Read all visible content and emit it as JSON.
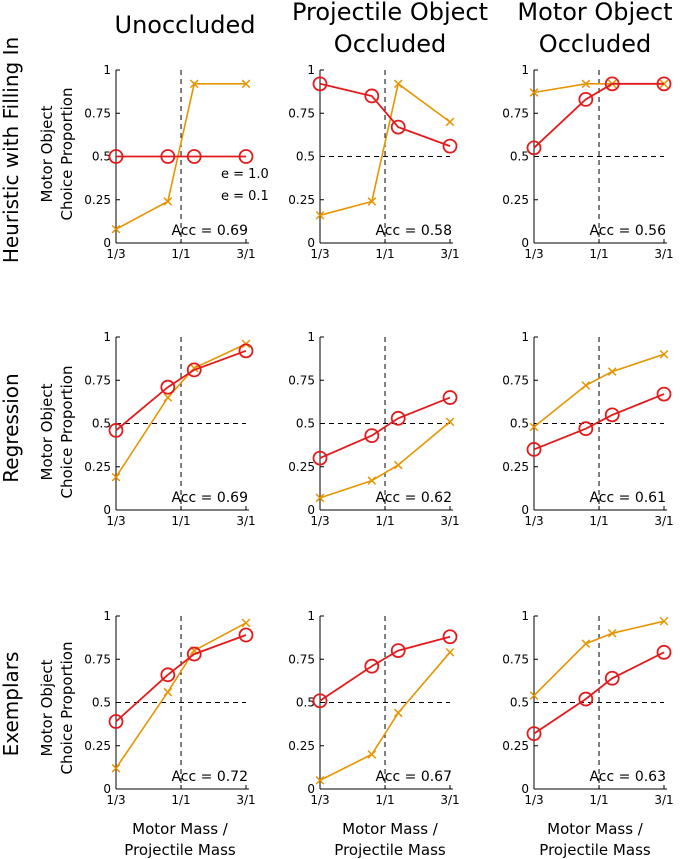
{
  "figure": {
    "column_titles": [
      [
        "Unoccluded"
      ],
      [
        "Projectile Object",
        "Occluded"
      ],
      [
        "Motor Object",
        "Occluded"
      ]
    ],
    "row_titles": [
      "Heuristic with Filling In",
      "Regression",
      "Exemplars"
    ],
    "y_axis_label": [
      "Motor Object",
      "Choice Proportion"
    ],
    "x_axis_label": [
      "Motor Mass /",
      "Projectile Mass"
    ],
    "colors": {
      "model": "#e31a1c",
      "human": "#e69500",
      "reference": "#000000"
    }
  },
  "legend": {
    "items": [
      "e = 1.0",
      "e = 0.1"
    ]
  },
  "chart_data": [
    {
      "type": "line",
      "row": 0,
      "col": 0,
      "xlim": [
        0.333,
        3.0
      ],
      "ylim": [
        0,
        1
      ],
      "x_scale": "log",
      "x_ticks": [
        {
          "v": 0.333,
          "label": "1/3"
        },
        {
          "v": 1,
          "label": "1/1"
        },
        {
          "v": 3,
          "label": "3/1"
        }
      ],
      "y_ticks": [
        {
          "v": 0,
          "label": "0"
        },
        {
          "v": 0.25,
          "label": "0.25"
        },
        {
          "v": 0.5,
          "label": "0.5"
        },
        {
          "v": 0.75,
          "label": "0.75"
        },
        {
          "v": 1,
          "label": "1"
        }
      ],
      "reference": {
        "vline": 1,
        "hline": 0.5
      },
      "series": [
        {
          "name": "model",
          "marker": "circle",
          "x": [
            0.333,
            0.8,
            1.25,
            3.0
          ],
          "y": [
            0.5,
            0.5,
            0.5,
            0.5
          ]
        },
        {
          "name": "human",
          "marker": "x",
          "x": [
            0.333,
            0.8,
            1.25,
            3.0
          ],
          "y": [
            0.08,
            0.24,
            0.92,
            0.92
          ]
        }
      ],
      "annotation": "Acc = 0.69"
    },
    {
      "type": "line",
      "row": 0,
      "col": 1,
      "xlim": [
        0.333,
        3.0
      ],
      "ylim": [
        0,
        1
      ],
      "x_scale": "log",
      "x_ticks": [
        {
          "v": 0.333,
          "label": "1/3"
        },
        {
          "v": 1,
          "label": "1/1"
        },
        {
          "v": 3,
          "label": "3/1"
        }
      ],
      "y_ticks": [
        {
          "v": 0,
          "label": "0"
        },
        {
          "v": 0.25,
          "label": "0.25"
        },
        {
          "v": 0.5,
          "label": "0.5"
        },
        {
          "v": 0.75,
          "label": "0.75"
        },
        {
          "v": 1,
          "label": "1"
        }
      ],
      "reference": {
        "vline": 1,
        "hline": 0.5
      },
      "series": [
        {
          "name": "model",
          "marker": "circle",
          "x": [
            0.333,
            0.8,
            1.25,
            3.0
          ],
          "y": [
            0.92,
            0.85,
            0.67,
            0.56
          ]
        },
        {
          "name": "human",
          "marker": "x",
          "x": [
            0.333,
            0.8,
            1.25,
            3.0
          ],
          "y": [
            0.16,
            0.24,
            0.92,
            0.7
          ]
        }
      ],
      "annotation": "Acc = 0.58"
    },
    {
      "type": "line",
      "row": 0,
      "col": 2,
      "xlim": [
        0.333,
        3.0
      ],
      "ylim": [
        0,
        1
      ],
      "x_scale": "log",
      "x_ticks": [
        {
          "v": 0.333,
          "label": "1/3"
        },
        {
          "v": 1,
          "label": "1/1"
        },
        {
          "v": 3,
          "label": "3/1"
        }
      ],
      "y_ticks": [
        {
          "v": 0,
          "label": "0"
        },
        {
          "v": 0.25,
          "label": "0.25"
        },
        {
          "v": 0.5,
          "label": "0.5"
        },
        {
          "v": 0.75,
          "label": "0.75"
        },
        {
          "v": 1,
          "label": "1"
        }
      ],
      "reference": {
        "vline": 1,
        "hline": 0.5
      },
      "series": [
        {
          "name": "model",
          "marker": "circle",
          "x": [
            0.333,
            0.8,
            1.25,
            3.0
          ],
          "y": [
            0.55,
            0.83,
            0.92,
            0.92
          ]
        },
        {
          "name": "human",
          "marker": "x",
          "x": [
            0.333,
            0.8,
            1.25,
            3.0
          ],
          "y": [
            0.87,
            0.92,
            0.92,
            0.92
          ]
        }
      ],
      "annotation": "Acc = 0.56"
    },
    {
      "type": "line",
      "row": 1,
      "col": 0,
      "xlim": [
        0.333,
        3.0
      ],
      "ylim": [
        0,
        1
      ],
      "x_scale": "log",
      "x_ticks": [
        {
          "v": 0.333,
          "label": "1/3"
        },
        {
          "v": 1,
          "label": "1/1"
        },
        {
          "v": 3,
          "label": "3/1"
        }
      ],
      "y_ticks": [
        {
          "v": 0,
          "label": "0"
        },
        {
          "v": 0.25,
          "label": "0.25"
        },
        {
          "v": 0.5,
          "label": "0.5"
        },
        {
          "v": 0.75,
          "label": "0.75"
        },
        {
          "v": 1,
          "label": "1"
        }
      ],
      "reference": {
        "vline": 1,
        "hline": 0.5
      },
      "series": [
        {
          "name": "model",
          "marker": "circle",
          "x": [
            0.333,
            0.8,
            1.25,
            3.0
          ],
          "y": [
            0.46,
            0.71,
            0.81,
            0.92
          ]
        },
        {
          "name": "human",
          "marker": "x",
          "x": [
            0.333,
            0.8,
            1.25,
            3.0
          ],
          "y": [
            0.19,
            0.65,
            0.82,
            0.96
          ]
        }
      ],
      "annotation": "Acc = 0.69"
    },
    {
      "type": "line",
      "row": 1,
      "col": 1,
      "xlim": [
        0.333,
        3.0
      ],
      "ylim": [
        0,
        1
      ],
      "x_scale": "log",
      "x_ticks": [
        {
          "v": 0.333,
          "label": "1/3"
        },
        {
          "v": 1,
          "label": "1/1"
        },
        {
          "v": 3,
          "label": "3/1"
        }
      ],
      "y_ticks": [
        {
          "v": 0,
          "label": "0"
        },
        {
          "v": 0.25,
          "label": "0.25"
        },
        {
          "v": 0.5,
          "label": "0.5"
        },
        {
          "v": 0.75,
          "label": "0.75"
        },
        {
          "v": 1,
          "label": "1"
        }
      ],
      "reference": {
        "vline": 1,
        "hline": 0.5
      },
      "series": [
        {
          "name": "model",
          "marker": "circle",
          "x": [
            0.333,
            0.8,
            1.25,
            3.0
          ],
          "y": [
            0.3,
            0.43,
            0.53,
            0.65
          ]
        },
        {
          "name": "human",
          "marker": "x",
          "x": [
            0.333,
            0.8,
            1.25,
            3.0
          ],
          "y": [
            0.07,
            0.17,
            0.26,
            0.51
          ]
        }
      ],
      "annotation": "Acc = 0.62"
    },
    {
      "type": "line",
      "row": 1,
      "col": 2,
      "xlim": [
        0.333,
        3.0
      ],
      "ylim": [
        0,
        1
      ],
      "x_scale": "log",
      "x_ticks": [
        {
          "v": 0.333,
          "label": "1/3"
        },
        {
          "v": 1,
          "label": "1/1"
        },
        {
          "v": 3,
          "label": "3/1"
        }
      ],
      "y_ticks": [
        {
          "v": 0,
          "label": "0"
        },
        {
          "v": 0.25,
          "label": "0.25"
        },
        {
          "v": 0.5,
          "label": "0.5"
        },
        {
          "v": 0.75,
          "label": "0.75"
        },
        {
          "v": 1,
          "label": "1"
        }
      ],
      "reference": {
        "vline": 1,
        "hline": 0.5
      },
      "series": [
        {
          "name": "model",
          "marker": "circle",
          "x": [
            0.333,
            0.8,
            1.25,
            3.0
          ],
          "y": [
            0.35,
            0.47,
            0.55,
            0.67
          ]
        },
        {
          "name": "human",
          "marker": "x",
          "x": [
            0.333,
            0.8,
            1.25,
            3.0
          ],
          "y": [
            0.48,
            0.72,
            0.8,
            0.9
          ]
        }
      ],
      "annotation": "Acc = 0.61"
    },
    {
      "type": "line",
      "row": 2,
      "col": 0,
      "xlim": [
        0.333,
        3.0
      ],
      "ylim": [
        0,
        1
      ],
      "x_scale": "log",
      "x_ticks": [
        {
          "v": 0.333,
          "label": "1/3"
        },
        {
          "v": 1,
          "label": "1/1"
        },
        {
          "v": 3,
          "label": "3/1"
        }
      ],
      "y_ticks": [
        {
          "v": 0,
          "label": "0"
        },
        {
          "v": 0.25,
          "label": "0.25"
        },
        {
          "v": 0.5,
          "label": "0.5"
        },
        {
          "v": 0.75,
          "label": "0.75"
        },
        {
          "v": 1,
          "label": "1"
        }
      ],
      "reference": {
        "vline": 1,
        "hline": 0.5
      },
      "series": [
        {
          "name": "model",
          "marker": "circle",
          "x": [
            0.333,
            0.8,
            1.25,
            3.0
          ],
          "y": [
            0.39,
            0.66,
            0.78,
            0.89
          ]
        },
        {
          "name": "human",
          "marker": "x",
          "x": [
            0.333,
            0.8,
            1.25,
            3.0
          ],
          "y": [
            0.12,
            0.56,
            0.8,
            0.96
          ]
        }
      ],
      "annotation": "Acc = 0.72"
    },
    {
      "type": "line",
      "row": 2,
      "col": 1,
      "xlim": [
        0.333,
        3.0
      ],
      "ylim": [
        0,
        1
      ],
      "x_scale": "log",
      "x_ticks": [
        {
          "v": 0.333,
          "label": "1/3"
        },
        {
          "v": 1,
          "label": "1/1"
        },
        {
          "v": 3,
          "label": "3/1"
        }
      ],
      "y_ticks": [
        {
          "v": 0,
          "label": "0"
        },
        {
          "v": 0.25,
          "label": "0.25"
        },
        {
          "v": 0.5,
          "label": "0.5"
        },
        {
          "v": 0.75,
          "label": "0.75"
        },
        {
          "v": 1,
          "label": "1"
        }
      ],
      "reference": {
        "vline": 1,
        "hline": 0.5
      },
      "series": [
        {
          "name": "model",
          "marker": "circle",
          "x": [
            0.333,
            0.8,
            1.25,
            3.0
          ],
          "y": [
            0.51,
            0.71,
            0.8,
            0.88
          ]
        },
        {
          "name": "human",
          "marker": "x",
          "x": [
            0.333,
            0.8,
            1.25,
            3.0
          ],
          "y": [
            0.05,
            0.2,
            0.44,
            0.79
          ]
        }
      ],
      "annotation": "Acc = 0.67"
    },
    {
      "type": "line",
      "row": 2,
      "col": 2,
      "xlim": [
        0.333,
        3.0
      ],
      "ylim": [
        0,
        1
      ],
      "x_scale": "log",
      "x_ticks": [
        {
          "v": 0.333,
          "label": "1/3"
        },
        {
          "v": 1,
          "label": "1/1"
        },
        {
          "v": 3,
          "label": "3/1"
        }
      ],
      "y_ticks": [
        {
          "v": 0,
          "label": "0"
        },
        {
          "v": 0.25,
          "label": "0.25"
        },
        {
          "v": 0.5,
          "label": "0.5"
        },
        {
          "v": 0.75,
          "label": "0.75"
        },
        {
          "v": 1,
          "label": "1"
        }
      ],
      "reference": {
        "vline": 1,
        "hline": 0.5
      },
      "series": [
        {
          "name": "model",
          "marker": "circle",
          "x": [
            0.333,
            0.8,
            1.25,
            3.0
          ],
          "y": [
            0.32,
            0.52,
            0.64,
            0.79
          ]
        },
        {
          "name": "human",
          "marker": "x",
          "x": [
            0.333,
            0.8,
            1.25,
            3.0
          ],
          "y": [
            0.54,
            0.84,
            0.9,
            0.97
          ]
        }
      ],
      "annotation": "Acc = 0.63"
    }
  ]
}
